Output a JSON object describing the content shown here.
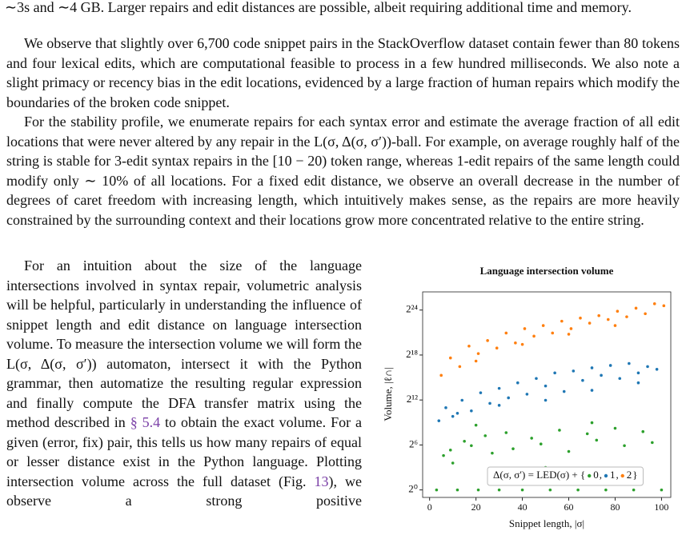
{
  "paragraphs": [
    [
      {
        "text": "∼3s and ∼4 GB. Larger repairs and edit distances are possible, albeit requiring additional time and memory."
      }
    ],
    [
      {
        "text": "We observe that slightly over 6,700 code snippet pairs in the StackOverflow dataset contain fewer than 80 tokens and four lexical edits, which are computational feasible to process in a few hundred milliseconds. We also note a slight primacy or recency bias in the edit locations, evidenced by a large fraction of human repairs which modify the boundaries of the broken code snippet."
      }
    ],
    [
      {
        "text": "For the stability profile, we enumerate repairs for each syntax error and estimate the average fraction of all edit locations that were never altered by any repair in the L(σ, Δ(σ, σ′))-ball. For example, on average roughly half of the string is stable for 3-edit syntax repairs in the [10 − 20) token range, whereas 1-edit repairs of the same length could modify only ∼ 10% of all locations. For a fixed edit distance, we observe an overall decrease in the number of degrees of caret freedom with increasing length, which intuitively makes sense, as the repairs are more heavily constrained by the surrounding context and their locations grow more concentrated relative to the entire string."
      }
    ],
    [
      {
        "text": "For an intuition about the size of the language intersections involved in syntax repair, volumetric analysis will be helpful, particularly in understanding the influence of snippet length and edit distance on language intersection volume. To measure the intersection volume we will form the L(σ, Δ(σ, σ′)) automaton, intersect it with the Python grammar, then automatize the resulting regular expression and finally compute the DFA transfer matrix using the method described in "
      },
      {
        "text": "§ 5.4",
        "style": "link"
      },
      {
        "text": " to obtain the exact volume. For a given (error, fix) pair, this tells us how many repairs of equal or lesser distance exist in the Python language. Plotting intersection volume across the full dataset (Fig. "
      },
      {
        "text": "13",
        "style": "link"
      },
      {
        "text": "), we observe a strong positive"
      }
    ]
  ],
  "chart_data": {
    "type": "scatter",
    "title": "Language intersection volume",
    "x_label": "Snippet length, |σ|",
    "y_label": "Volume, |ℓ∩|",
    "xlim": [
      -3,
      104
    ],
    "xticks": [
      0,
      20,
      40,
      60,
      80,
      100
    ],
    "ylim": [
      0.5,
      90000000
    ],
    "yscale": "log2",
    "yticks": [
      {
        "value": 1,
        "label": "2⁰"
      },
      {
        "value": 64,
        "label": "2⁶"
      },
      {
        "value": 4096,
        "label": "2¹²"
      },
      {
        "value": 262144,
        "label": "2¹⁸"
      },
      {
        "value": 16777216,
        "label": "2²⁴"
      }
    ],
    "legend_prefix": "Δ(σ, σ′) = LED(σ) + {",
    "legend_separator": ",",
    "legend_suffix": "}",
    "series": [
      {
        "name": "0",
        "color": "#2ca02c",
        "x": [
          3,
          6,
          9,
          12,
          15,
          18,
          21,
          24,
          27,
          30,
          33,
          36,
          40,
          44,
          48,
          52,
          56,
          60,
          64,
          68,
          72,
          76,
          80,
          84,
          88,
          92,
          96,
          100,
          10,
          50,
          90,
          20,
          70
        ],
        "values": [
          1,
          24,
          40,
          1,
          90,
          60,
          1,
          150,
          30,
          1,
          200,
          45,
          1,
          120,
          70,
          1,
          250,
          35,
          1,
          180,
          100,
          1,
          300,
          60,
          1,
          220,
          80,
          1,
          12,
          8,
          6,
          400,
          500
        ]
      },
      {
        "name": "1",
        "color": "#1f77b4",
        "x": [
          4,
          7,
          10,
          14,
          18,
          22,
          26,
          30,
          34,
          38,
          42,
          46,
          50,
          54,
          58,
          62,
          66,
          70,
          74,
          78,
          82,
          86,
          90,
          94,
          98,
          12,
          30,
          50,
          70,
          90
        ],
        "values": [
          600,
          2000,
          900,
          4000,
          1500,
          8000,
          3000,
          12000,
          5000,
          20000,
          7000,
          30000,
          15000,
          50000,
          9000,
          60000,
          25000,
          80000,
          40000,
          100000,
          30000,
          120000,
          50000,
          90000,
          70000,
          1200,
          2500,
          4000,
          10000,
          20000
        ]
      },
      {
        "name": "2",
        "color": "#ff7f0e",
        "x": [
          5,
          9,
          13,
          17,
          21,
          25,
          29,
          33,
          37,
          41,
          45,
          49,
          53,
          57,
          61,
          65,
          69,
          73,
          77,
          81,
          85,
          89,
          93,
          97,
          101,
          20,
          40,
          60,
          80
        ],
        "values": [
          40000,
          200000,
          90000,
          600000,
          300000,
          1000000,
          500000,
          2000000,
          800000,
          3000000,
          1500000,
          4000000,
          2000000,
          6000000,
          3000000,
          8000000,
          5000000,
          10000000,
          7000000,
          15000000,
          9000000,
          20000000,
          12000000,
          30000000,
          25000000,
          150000,
          700000,
          1800000,
          4000000
        ]
      }
    ]
  }
}
